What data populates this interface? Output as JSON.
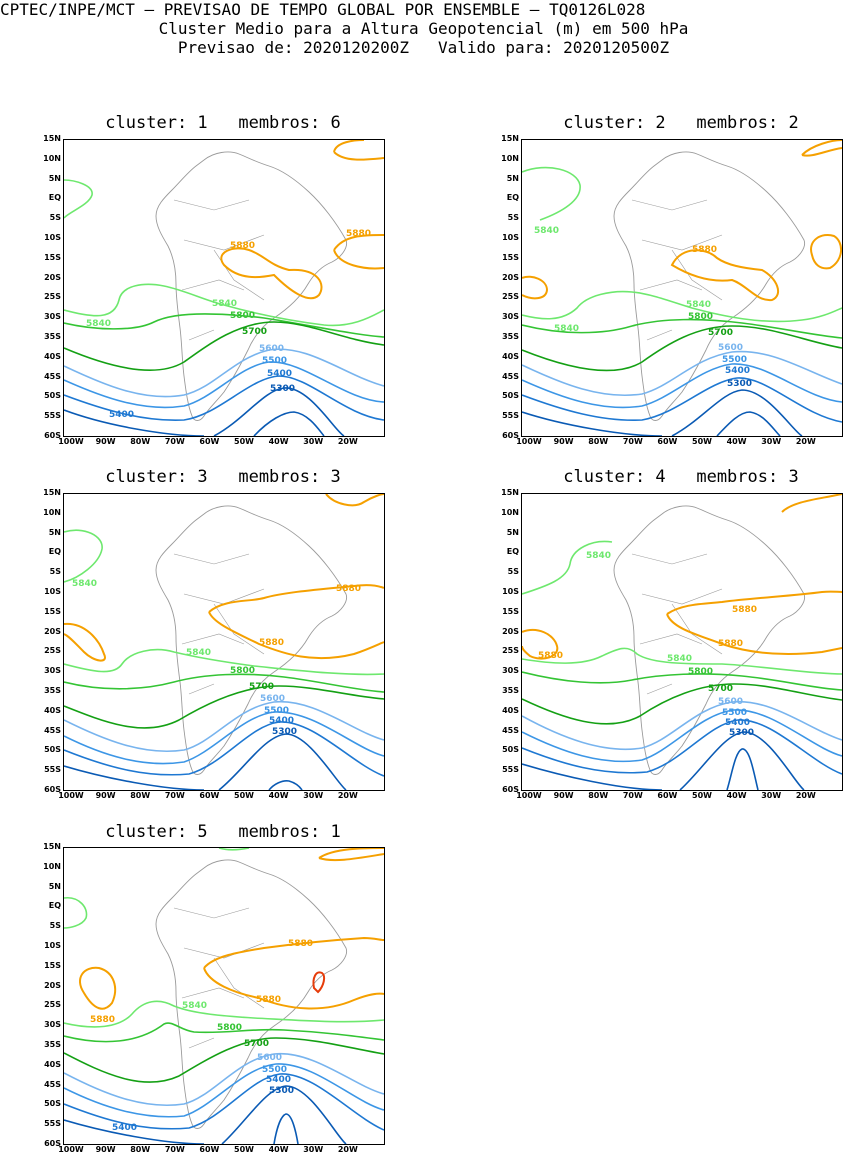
{
  "header": {
    "line1": "CPTEC/INPE/MCT – PREVISAO DE TEMPO GLOBAL POR ENSEMBLE – TQ0126L028",
    "line2": "Cluster Medio para a Altura Geopotencial (m) em 500 hPa",
    "line3": "Previsao de: 2020120200Z   Valido para: 2020120500Z"
  },
  "axes": {
    "lat_labels": [
      "15N",
      "10N",
      "5N",
      "EQ",
      "5S",
      "10S",
      "15S",
      "20S",
      "25S",
      "30S",
      "35S",
      "40S",
      "45S",
      "50S",
      "55S",
      "60S"
    ],
    "lon_labels": [
      "100W",
      "90W",
      "80W",
      "70W",
      "60W",
      "50W",
      "40W",
      "30W",
      "20W"
    ]
  },
  "colors": {
    "c5880": "#f5a000",
    "c5840": "#6ee86e",
    "c5800": "#34c434",
    "c5700": "#14a014",
    "c5600": "#78b4ee",
    "c5500": "#3c96e6",
    "c5400": "#1e78d2",
    "c5300": "#0a5ab4",
    "c5920": "#e63c0a",
    "coast": "#9a9a9a"
  },
  "panels": [
    {
      "title": "cluster: 1   membros: 6",
      "labels": {
        "l5880a": "5880",
        "l5880b": "5880",
        "l5840a": "5840",
        "l5840b": "5840",
        "l5800": "5800",
        "l5700": "5700",
        "l5600": "5600",
        "l5500": "5500",
        "l5400": "5400",
        "l5300": "5300",
        "l5400b": "5400"
      }
    },
    {
      "title": "cluster: 2   membros: 2",
      "labels": {
        "l5880a": "5880",
        "l5840a": "5840",
        "l5840b": "5840",
        "l5840c": "5840",
        "l5800": "5800",
        "l5700": "5700",
        "l5600": "5600",
        "l5500": "5500",
        "l5400": "5400",
        "l5300": "5300"
      }
    },
    {
      "title": "cluster: 3   membros: 3",
      "labels": {
        "l5880a": "5880",
        "l5880b": "5880",
        "l5840a": "5840",
        "l5840b": "5840",
        "l5800": "5800",
        "l5700": "5700",
        "l5600": "5600",
        "l5500": "5500",
        "l5400": "5400",
        "l5300": "5300"
      }
    },
    {
      "title": "cluster: 4   membros: 3",
      "labels": {
        "l5880a": "5880",
        "l5880b": "5880",
        "l5880c": "5880",
        "l5840a": "5840",
        "l5840b": "5840",
        "l5800": "5800",
        "l5700": "5700",
        "l5600": "5600",
        "l5500": "5500",
        "l5400": "5400",
        "l5300": "5300"
      }
    },
    {
      "title": "cluster: 5   membros: 1",
      "labels": {
        "l5880a": "5880",
        "l5880b": "5880",
        "l5880c": "5880",
        "l5840": "5840",
        "l5800": "5800",
        "l5700": "5700",
        "l5600": "5600",
        "l5500": "5500",
        "l5400": "5400",
        "l5300": "5300",
        "l5400b": "5400"
      }
    }
  ]
}
